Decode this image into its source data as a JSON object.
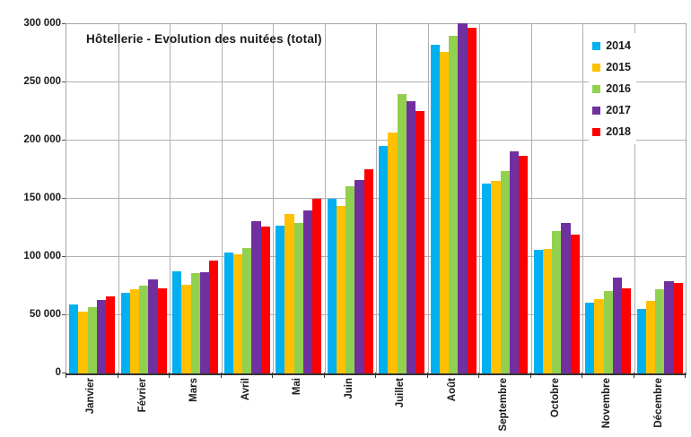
{
  "chart_data": {
    "type": "bar",
    "title": "Hôtellerie - Evolution des nuitées (total)",
    "categories": [
      "Janvier",
      "Février",
      "Mars",
      "Avril",
      "Mai",
      "Juin",
      "Juillet",
      "Août",
      "Septembre",
      "Octobre",
      "Novembre",
      "Décembre"
    ],
    "series": [
      {
        "name": "2014",
        "color": "#00B0F0",
        "values": [
          59000,
          69000,
          88000,
          104000,
          127000,
          150000,
          195000,
          282000,
          163000,
          106000,
          61000,
          55000
        ]
      },
      {
        "name": "2015",
        "color": "#FFC000",
        "values": [
          53000,
          72000,
          76000,
          102000,
          137000,
          144000,
          207000,
          276000,
          165000,
          107000,
          64000,
          62000
        ]
      },
      {
        "name": "2016",
        "color": "#92D050",
        "values": [
          57000,
          75000,
          86000,
          108000,
          129000,
          161000,
          240000,
          290000,
          174000,
          122000,
          71000,
          72000
        ]
      },
      {
        "name": "2017",
        "color": "#7030A0",
        "values": [
          63000,
          81000,
          87000,
          131000,
          140000,
          166000,
          234000,
          301000,
          191000,
          129000,
          82000,
          79000
        ]
      },
      {
        "name": "2018",
        "color": "#FF0000",
        "values": [
          66000,
          73000,
          97000,
          126000,
          150000,
          175000,
          225000,
          297000,
          187000,
          119000,
          73000,
          78000
        ]
      }
    ],
    "xlabel": "",
    "ylabel": "",
    "ylim": [
      0,
      300000
    ],
    "ytick_step": 50000,
    "ytick_labels_top_to_bottom": [
      "300 000",
      "250 000",
      "200 000",
      "150 000",
      "100 000",
      "50 000",
      "0"
    ],
    "grid": "horizontal 50000 steps + vertical month separators",
    "legend_position": "top-right-inside"
  },
  "colors": {
    "gridline": "#b0b0b0",
    "plot_border": "#a6a6a6",
    "axis": "#333333",
    "text": "#1a1a1a",
    "background": "#ffffff"
  }
}
